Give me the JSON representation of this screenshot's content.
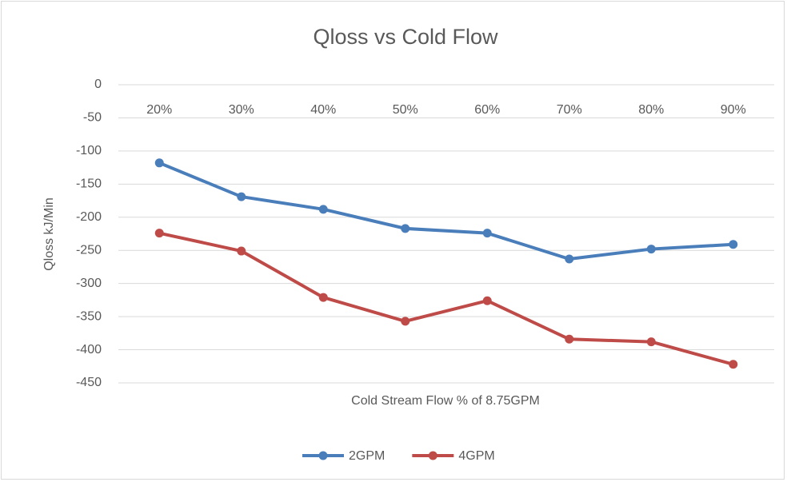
{
  "chart_data": {
    "type": "line",
    "title": "Qloss vs Cold Flow",
    "x_label": "Cold Stream Flow % of 8.75GPM",
    "y_label": "Qloss kJ/Min",
    "categories": [
      "20%",
      "30%",
      "40%",
      "50%",
      "60%",
      "70%",
      "80%",
      "90%"
    ],
    "series": [
      {
        "name": "2GPM",
        "color": "#4a7ebb",
        "values": [
          -118,
          -169,
          -188,
          -217,
          -224,
          -263,
          -248,
          -241
        ]
      },
      {
        "name": "4GPM",
        "color": "#be4b48",
        "values": [
          -224,
          -251,
          -321,
          -357,
          -326,
          -384,
          -388,
          -422
        ]
      }
    ],
    "ylim": [
      -450,
      0
    ],
    "yticks": [
      0,
      -50,
      -100,
      -150,
      -200,
      -250,
      -300,
      -350,
      -400,
      -450
    ],
    "grid": true,
    "legend": "bottom"
  }
}
